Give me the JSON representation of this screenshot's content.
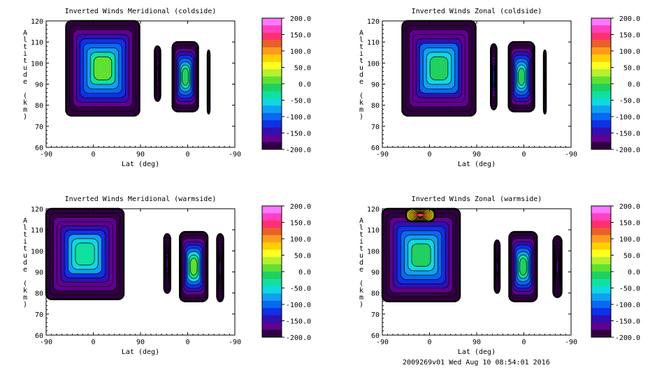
{
  "footer": "2009269v01 Wed Aug 10 08:54:01 2016",
  "colorbar": {
    "labels": [
      "200.0",
      "150.0",
      "100.0",
      "50.0",
      "0.0",
      "-50.0",
      "-100.0",
      "-150.0",
      "-200.0"
    ],
    "colors": [
      "#ff78ff",
      "#ff40c0",
      "#ff3070",
      "#e8602a",
      "#ff9a20",
      "#ffd000",
      "#ffff20",
      "#b8f030",
      "#60e030",
      "#20d060",
      "#10e0a0",
      "#10d8e0",
      "#10a0f0",
      "#0868f0",
      "#1030e8",
      "#3010b0",
      "#600090",
      "#300040"
    ]
  },
  "chart_data": [
    {
      "type": "heatmap",
      "title": "Inverted Winds Meridional (coldside)",
      "ylabel": "Altitude (km)",
      "xlabel": "Lat (deg)",
      "xticks": [
        "-90",
        "0",
        "90",
        "0",
        "-90"
      ],
      "yticks": [
        "120",
        "110",
        "100",
        "90",
        "80",
        "70",
        "60"
      ],
      "ylim": [
        60,
        120
      ],
      "regions": [
        {
          "x": [
            -52,
            88
          ],
          "y": [
            75,
            120
          ],
          "center": 48,
          "edge": -200
        },
        {
          "x": [
            117,
            128
          ],
          "y": [
            82,
            108
          ],
          "center": -150,
          "edge": -200
        },
        {
          "x": [
            151,
            200
          ],
          "y": [
            77,
            110
          ],
          "center": 40,
          "edge": -200
        },
        {
          "x": [
            218,
            222
          ],
          "y": [
            76,
            106
          ],
          "center": -200,
          "edge": -200
        }
      ]
    },
    {
      "type": "heatmap",
      "title": "Inverted Winds Zonal (coldside)",
      "ylabel": "Altitude (km)",
      "xlabel": "Lat (deg)",
      "xticks": [
        "-90",
        "0",
        "90",
        "0",
        "-90"
      ],
      "yticks": [
        "120",
        "110",
        "100",
        "90",
        "80",
        "70",
        "60"
      ],
      "ylim": [
        60,
        120
      ],
      "regions": [
        {
          "x": [
            -52,
            88
          ],
          "y": [
            75,
            120
          ],
          "center": 20,
          "edge": -200
        },
        {
          "x": [
            117,
            128
          ],
          "y": [
            78,
            109
          ],
          "center": -110,
          "edge": -200
        },
        {
          "x": [
            151,
            200
          ],
          "y": [
            77,
            110
          ],
          "center": 30,
          "edge": -200
        },
        {
          "x": [
            218,
            222
          ],
          "y": [
            76,
            106
          ],
          "center": -200,
          "edge": -200
        }
      ]
    },
    {
      "type": "heatmap",
      "title": "Inverted Winds Meridional (warmside)",
      "ylabel": "Altitude (km)",
      "xlabel": "Lat (deg)",
      "xticks": [
        "-90",
        "0",
        "90",
        "0",
        "-90"
      ],
      "yticks": [
        "120",
        "110",
        "100",
        "90",
        "80",
        "70",
        "60"
      ],
      "ylim": [
        60,
        120
      ],
      "regions": [
        {
          "x": [
            -90,
            58
          ],
          "y": [
            77,
            120
          ],
          "center": 10,
          "edge": -200
        },
        {
          "x": [
            135,
            147
          ],
          "y": [
            80,
            108
          ],
          "center": -160,
          "edge": -200
        },
        {
          "x": [
            165,
            218
          ],
          "y": [
            76,
            109
          ],
          "center": 60,
          "edge": -200
        },
        {
          "x": [
            236,
            248
          ],
          "y": [
            76,
            108
          ],
          "center": -170,
          "edge": -200
        }
      ]
    },
    {
      "type": "heatmap",
      "title": "Inverted Winds Zonal (warmside)",
      "ylabel": "Altitude (km)",
      "xlabel": "Lat (deg)",
      "xticks": [
        "-90",
        "0",
        "90",
        "0",
        "-90"
      ],
      "yticks": [
        "120",
        "110",
        "100",
        "90",
        "80",
        "70",
        "60"
      ],
      "ylim": [
        60,
        120
      ],
      "regions": [
        {
          "x": [
            -90,
            58
          ],
          "y": [
            76,
            120
          ],
          "center": 30,
          "edge": -200
        },
        {
          "x": [
            -45,
            10
          ],
          "y": [
            114,
            120
          ],
          "center": 150,
          "edge": 60
        },
        {
          "x": [
            124,
            134
          ],
          "y": [
            80,
            105
          ],
          "center": -170,
          "edge": -200
        },
        {
          "x": [
            152,
            205
          ],
          "y": [
            76,
            109
          ],
          "center": 40,
          "edge": -200
        },
        {
          "x": [
            236,
            252
          ],
          "y": [
            78,
            107
          ],
          "center": -170,
          "edge": -200
        }
      ]
    }
  ]
}
